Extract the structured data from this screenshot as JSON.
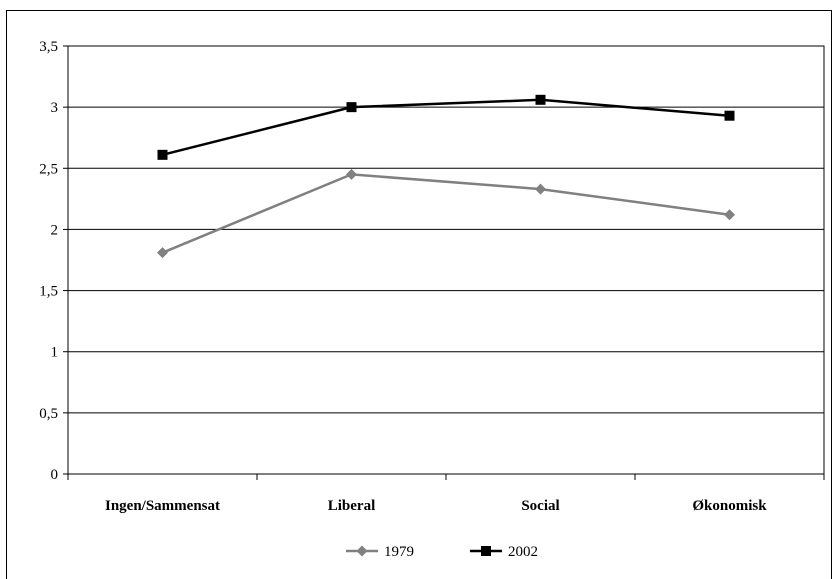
{
  "chart_data": {
    "type": "line",
    "title": "",
    "categories": [
      "Ingen/Sammensat",
      "Liberal",
      "Social",
      "Økonomisk"
    ],
    "series": [
      {
        "name": "1979",
        "values": [
          1.81,
          2.45,
          2.33,
          2.12
        ],
        "color": "#808080",
        "marker": "diamond"
      },
      {
        "name": "2002",
        "values": [
          2.61,
          3.0,
          3.06,
          2.93
        ],
        "color": "#000000",
        "marker": "square"
      }
    ],
    "yticks": [
      "0",
      "0,5",
      "1",
      "1,5",
      "2",
      "2,5",
      "3",
      "3,5"
    ],
    "ylim": [
      0,
      3.5
    ],
    "xlabel": "",
    "ylabel": "",
    "grid": true,
    "legend": "bottom"
  }
}
